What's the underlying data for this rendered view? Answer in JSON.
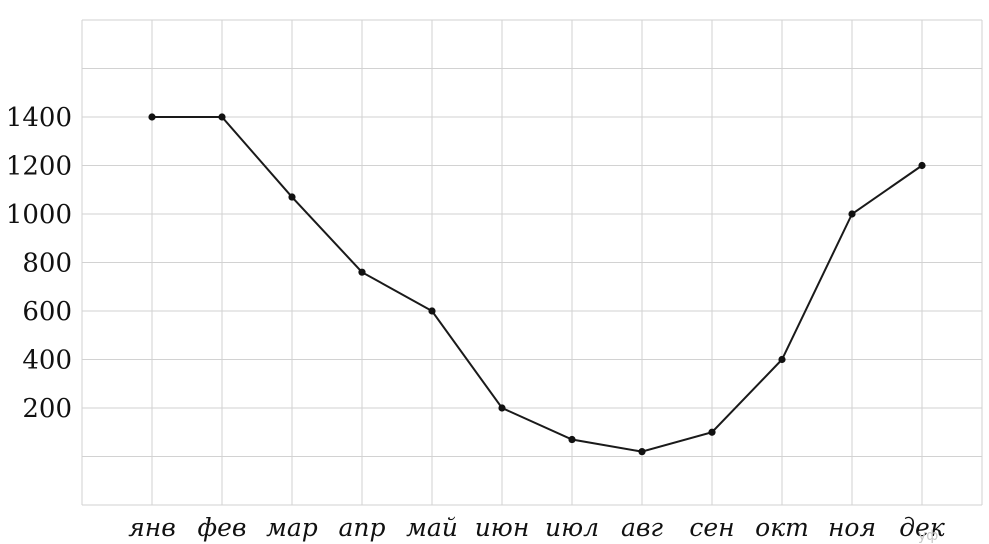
{
  "chart_data": {
    "type": "line",
    "categories": [
      "янв",
      "фев",
      "мар",
      "апр",
      "май",
      "июн",
      "июл",
      "авг",
      "сен",
      "окт",
      "ноя",
      "дек"
    ],
    "values": [
      1400,
      1400,
      1070,
      760,
      600,
      200,
      70,
      20,
      100,
      400,
      1000,
      1200
    ],
    "yticks": [
      "200",
      "400",
      "600",
      "800",
      "1000",
      "1200",
      "1400"
    ],
    "ylim": [
      -200,
      1800
    ],
    "grid": true,
    "line_color": "#1a1a1a",
    "grid_color": "#d2d2d2"
  },
  "watermark": "уф"
}
